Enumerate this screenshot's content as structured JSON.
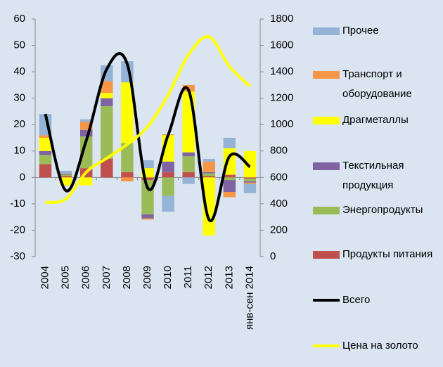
{
  "chart_data": {
    "type": "bar",
    "categories": [
      "2004",
      "2005",
      "2006",
      "2007",
      "2008",
      "2009",
      "2010",
      "2011",
      "2012",
      "2013",
      "янв-сен 2014"
    ],
    "ylim": [
      -30,
      60
    ],
    "yticks": [
      -30,
      -20,
      -10,
      0,
      10,
      20,
      30,
      40,
      50,
      60
    ],
    "y2lim": [
      0,
      1800
    ],
    "y2ticks": [
      0,
      200,
      400,
      600,
      800,
      1000,
      1200,
      1400,
      1600,
      1800
    ],
    "series": [
      {
        "name": "Прочее",
        "type": "bar",
        "color": "#95b3d7",
        "values": [
          8,
          1,
          1,
          6,
          8,
          3,
          -6,
          -2.5,
          1,
          4,
          -3.5
        ]
      },
      {
        "name": "Транспорт и оборудование",
        "type": "bar",
        "color": "#f79646",
        "values": [
          1,
          0.2,
          3,
          4.5,
          -1.5,
          -0.5,
          0.3,
          2.5,
          4,
          -2,
          -0.5
        ]
      },
      {
        "name": "Драгметаллы",
        "type": "bar",
        "color": "#ffff00",
        "values": [
          5,
          -3,
          -3,
          2,
          23,
          3.5,
          10,
          23,
          -22,
          10,
          10
        ]
      },
      {
        "name": "Текстильная продукция",
        "type": "bar",
        "color": "#8064a2",
        "values": [
          1.5,
          0.3,
          2.5,
          3,
          0,
          -1.5,
          4,
          1.5,
          0.5,
          -4.5,
          -0.5
        ]
      },
      {
        "name": "Энергопродукты",
        "type": "bar",
        "color": "#9bbb59",
        "values": [
          3.5,
          0.5,
          12,
          20,
          11,
          -13,
          -7,
          6,
          1,
          -1,
          -1
        ]
      },
      {
        "name": "Продукты питания",
        "type": "bar",
        "color": "#c0504d",
        "values": [
          5,
          0.5,
          3.5,
          7,
          2,
          -1,
          2,
          2,
          0.5,
          1,
          -0.5
        ]
      },
      {
        "name": "Всего",
        "type": "line",
        "color": "#000000",
        "values": [
          24,
          -5,
          14,
          41,
          43,
          -4,
          16,
          33,
          -16,
          8,
          4
        ]
      },
      {
        "name": "Цена на золото",
        "type": "line",
        "axis": "y2",
        "color": "#ffff00",
        "values": [
          410,
          437,
          640,
          745,
          850,
          985,
          1225,
          1530,
          1665,
          1440,
          1290
        ]
      }
    ]
  }
}
